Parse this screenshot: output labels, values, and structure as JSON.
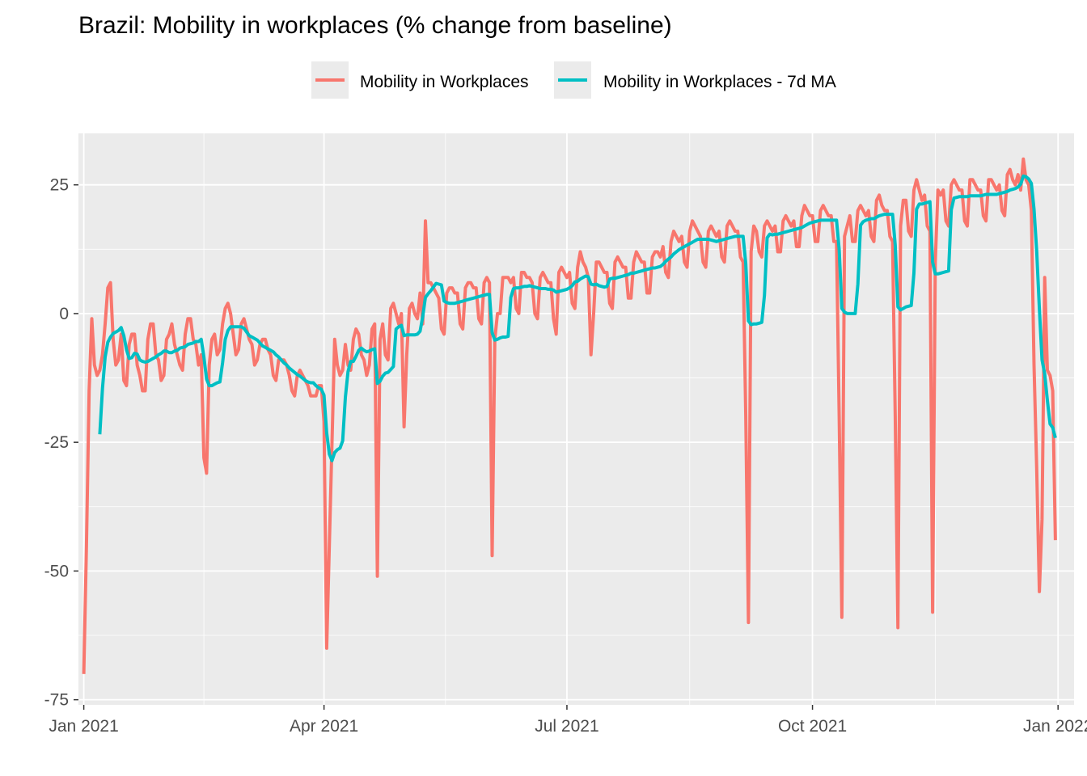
{
  "chart_data": {
    "type": "line",
    "title": "Brazil: Mobility in workplaces (% change from baseline)",
    "xlabel": "",
    "ylabel": "",
    "x_start_date": "2021-01-01",
    "x_step": "1 day",
    "xlim_days": [
      -2,
      371
    ],
    "ylim": [
      -76,
      35
    ],
    "x_ticks": [
      {
        "label": "Jan 2021",
        "day": 0
      },
      {
        "label": "Apr 2021",
        "day": 90
      },
      {
        "label": "Jul 2021",
        "day": 181
      },
      {
        "label": "Oct 2021",
        "day": 273
      },
      {
        "label": "Jan 2022",
        "day": 365
      }
    ],
    "y_ticks": [
      25,
      0,
      -25,
      -50,
      -75
    ],
    "y_tick_labels": [
      "25",
      "0",
      "-25",
      "-50",
      "-75"
    ],
    "grid": true,
    "legend_position": "top",
    "series": [
      {
        "name": "Mobility in Workplaces",
        "color": "#F8766D",
        "values": [
          -70,
          -45,
          -15,
          -1,
          -10,
          -12,
          -11,
          -8,
          -2,
          5,
          6,
          -5,
          -10,
          -9,
          -4,
          -13,
          -14,
          -6,
          -4,
          -4,
          -10,
          -12,
          -15,
          -15,
          -5,
          -2,
          -2,
          -8,
          -9,
          -13,
          -12,
          -5,
          -4,
          -2,
          -6,
          -8,
          -10,
          -11,
          -4,
          -1,
          -1,
          -5,
          -6,
          -10,
          -8,
          -28,
          -31,
          -10,
          -5,
          -4,
          -8,
          -7,
          -2,
          1,
          2,
          0,
          -4,
          -8,
          -7,
          -2,
          -1,
          -3,
          -5,
          -6,
          -10,
          -9,
          -6,
          -5,
          -5,
          -7,
          -8,
          -12,
          -13,
          -9,
          -9,
          -9,
          -10,
          -12,
          -15,
          -16,
          -12,
          -11,
          -12,
          -13,
          -14,
          -16,
          -16,
          -16,
          -14,
          -14,
          -21,
          -65,
          -45,
          -25,
          -5,
          -10,
          -12,
          -11,
          -6,
          -10,
          -11,
          -5,
          -3,
          -4,
          -8,
          -9,
          -12,
          -10,
          -3,
          -2,
          -51,
          -5,
          -2,
          -8,
          -9,
          1,
          2,
          0,
          -2,
          0,
          -22,
          -8,
          1,
          2,
          0,
          -1,
          4,
          -2,
          18,
          6,
          6,
          5,
          4,
          3,
          -3,
          -4,
          4,
          5,
          5,
          4,
          4,
          -2,
          -3,
          5,
          6,
          6,
          5,
          5,
          -1,
          -2,
          6,
          7,
          6,
          -47,
          -5,
          0,
          0,
          7,
          7,
          7,
          6,
          7,
          1,
          0,
          8,
          8,
          7,
          7,
          6,
          0,
          -1,
          7,
          8,
          7,
          6,
          6,
          -1,
          -4,
          8,
          9,
          8,
          7,
          8,
          2,
          1,
          9,
          12,
          10,
          9,
          7,
          -8,
          0,
          10,
          10,
          9,
          8,
          8,
          2,
          1,
          10,
          11,
          10,
          9,
          9,
          3,
          3,
          10,
          12,
          11,
          10,
          10,
          4,
          4,
          11,
          12,
          12,
          11,
          13,
          8,
          7,
          14,
          16,
          15,
          14,
          15,
          10,
          9,
          16,
          18,
          17,
          16,
          15,
          10,
          9,
          16,
          17,
          16,
          15,
          16,
          11,
          10,
          17,
          18,
          17,
          16,
          16,
          11,
          10,
          -20,
          -60,
          12,
          17,
          16,
          12,
          11,
          17,
          18,
          17,
          16,
          17,
          12,
          12,
          18,
          19,
          18,
          17,
          18,
          13,
          13,
          19,
          21,
          20,
          19,
          19,
          14,
          14,
          20,
          21,
          20,
          19,
          19,
          14,
          14,
          -20,
          -59,
          15,
          17,
          19,
          14,
          14,
          20,
          21,
          20,
          19,
          20,
          15,
          14,
          22,
          23,
          21,
          20,
          20,
          15,
          14,
          -20,
          -61,
          17,
          22,
          22,
          16,
          15,
          24,
          26,
          24,
          22,
          23,
          17,
          16,
          -58,
          10,
          24,
          23,
          24,
          18,
          17,
          25,
          26,
          25,
          24,
          24,
          18,
          17,
          26,
          26,
          25,
          24,
          24,
          19,
          18,
          26,
          26,
          25,
          24,
          25,
          20,
          19,
          27,
          28,
          26,
          25,
          27,
          24,
          30,
          26,
          25,
          20,
          -10,
          -30,
          -54,
          -40,
          7,
          -11,
          -12,
          -15,
          -44
        ]
      },
      {
        "name": "Mobility in Workplaces - 7d MA",
        "color": "#00BFC4",
        "derived_from": "Mobility in Workplaces",
        "moving_average_window": 7
      }
    ]
  },
  "colors": {
    "panel": "#EBEBEB",
    "grid": "#FFFFFF"
  }
}
